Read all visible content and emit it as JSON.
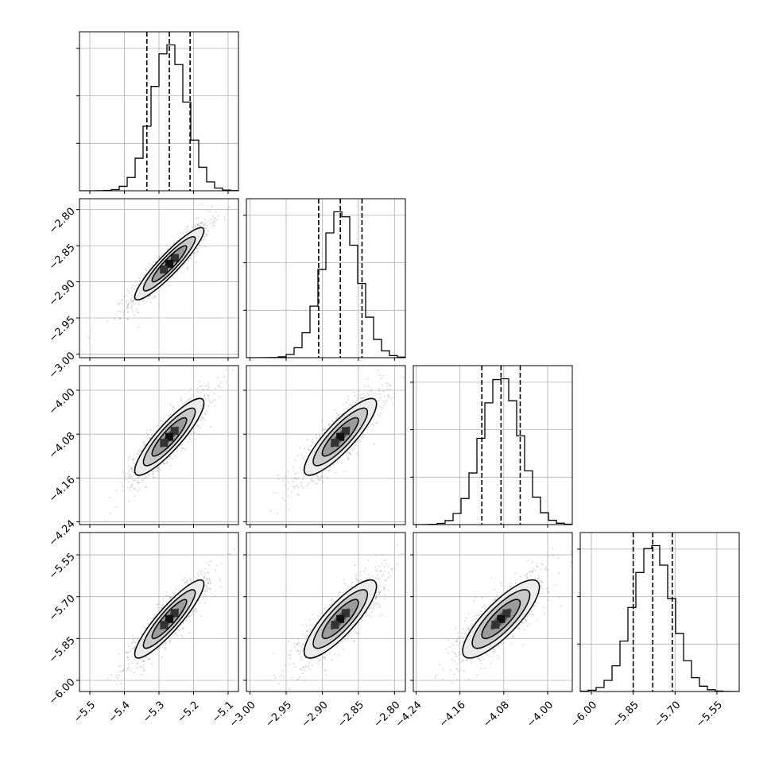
{
  "chart_data": {
    "type": "corner",
    "n_params": 4,
    "grid": true,
    "quantile_lines": "dashed",
    "colors": {
      "line": "#000000",
      "grid": "#b0b0b0",
      "frame": "#000000",
      "points": "#7f7f7f"
    },
    "params": [
      {
        "range": [
          -5.53,
          -5.07
        ],
        "mean": -5.27,
        "sd": 0.05,
        "q16": -5.335,
        "q50": -5.27,
        "q84": -5.21,
        "ticks": [
          -5.5,
          -5.4,
          -5.3,
          -5.2,
          -5.1
        ],
        "tick_labels": [
          "−5.5",
          "−5.4",
          "−5.3",
          "−5.2",
          "−5.1"
        ]
      },
      {
        "range": [
          -3.005,
          -2.785
        ],
        "mean": -2.875,
        "sd": 0.025,
        "q16": -2.905,
        "q50": -2.875,
        "q84": -2.845,
        "ticks": [
          -3.0,
          -2.95,
          -2.9,
          -2.85,
          -2.8
        ],
        "tick_labels": [
          "−3.00",
          "−2.95",
          "−2.90",
          "−2.85",
          "−2.80"
        ]
      },
      {
        "range": [
          -4.245,
          -3.955
        ],
        "mean": -4.085,
        "sd": 0.035,
        "q16": -4.12,
        "q50": -4.085,
        "q84": -4.05,
        "ticks": [
          -4.24,
          -4.16,
          -4.08,
          -4.0
        ],
        "tick_labels": [
          "−4.24",
          "−4.16",
          "−4.08",
          "−4.00"
        ]
      },
      {
        "range": [
          -6.04,
          -5.47
        ],
        "mean": -5.78,
        "sd": 0.07,
        "q16": -5.85,
        "q50": -5.78,
        "q84": -5.71,
        "ticks": [
          -6.0,
          -5.85,
          -5.7,
          -5.55
        ],
        "tick_labels": [
          "−6.00",
          "−5.85",
          "−5.70",
          "−5.55"
        ]
      }
    ],
    "histogram": {
      "bins": 20,
      "diag_y_ticks": 3
    },
    "correlations": [
      [
        1.0,
        0.92,
        0.88,
        0.9
      ],
      [
        0.92,
        1.0,
        0.86,
        0.84
      ],
      [
        0.88,
        0.86,
        1.0,
        0.82
      ],
      [
        0.9,
        0.84,
        0.82,
        1.0
      ]
    ]
  }
}
